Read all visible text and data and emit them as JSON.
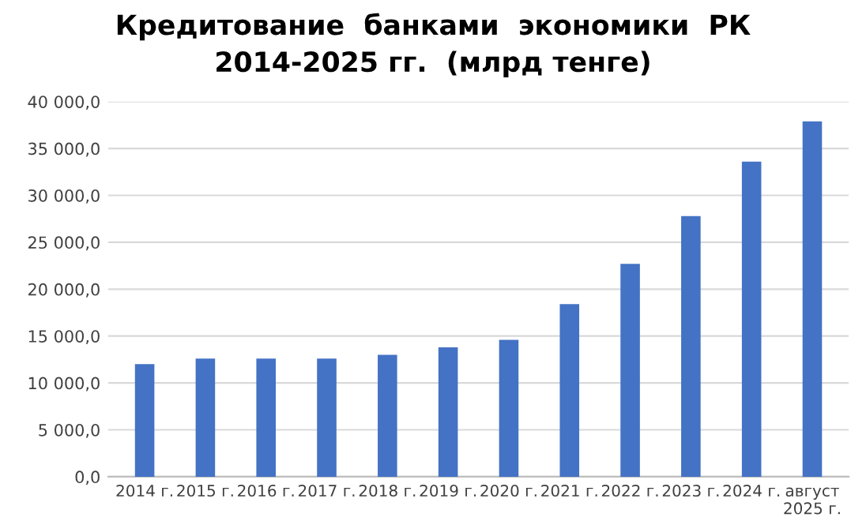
{
  "chart_data": {
    "type": "bar",
    "title": "Кредитование  банками  экономики  РК\n2014-2025 гг.  (млрд тенге)",
    "categories": [
      "2014 г.",
      "2015 г.",
      "2016 г.",
      "2017 г.",
      "2018 г.",
      "2019 г.",
      "2020 г.",
      "2021 г.",
      "2022 г.",
      "2023 г.",
      "2024 г.",
      "август\n2025 г."
    ],
    "values": [
      12000,
      12600,
      12600,
      12600,
      13000,
      13800,
      14600,
      18400,
      22700,
      27800,
      33600,
      37900
    ],
    "color": "#4472c4",
    "ylim": [
      0,
      40000
    ],
    "yticks": [
      {
        "value": 0,
        "label": "0,0"
      },
      {
        "value": 5000,
        "label": "5 000,0"
      },
      {
        "value": 10000,
        "label": "10 000,0"
      },
      {
        "value": 15000,
        "label": "15 000,0"
      },
      {
        "value": 20000,
        "label": "20 000,0"
      },
      {
        "value": 25000,
        "label": "25 000,0"
      },
      {
        "value": 30000,
        "label": "30 000,0"
      },
      {
        "value": 35000,
        "label": "35 000,0"
      },
      {
        "value": 40000,
        "label": "40 000,0"
      }
    ],
    "grid": "y"
  }
}
